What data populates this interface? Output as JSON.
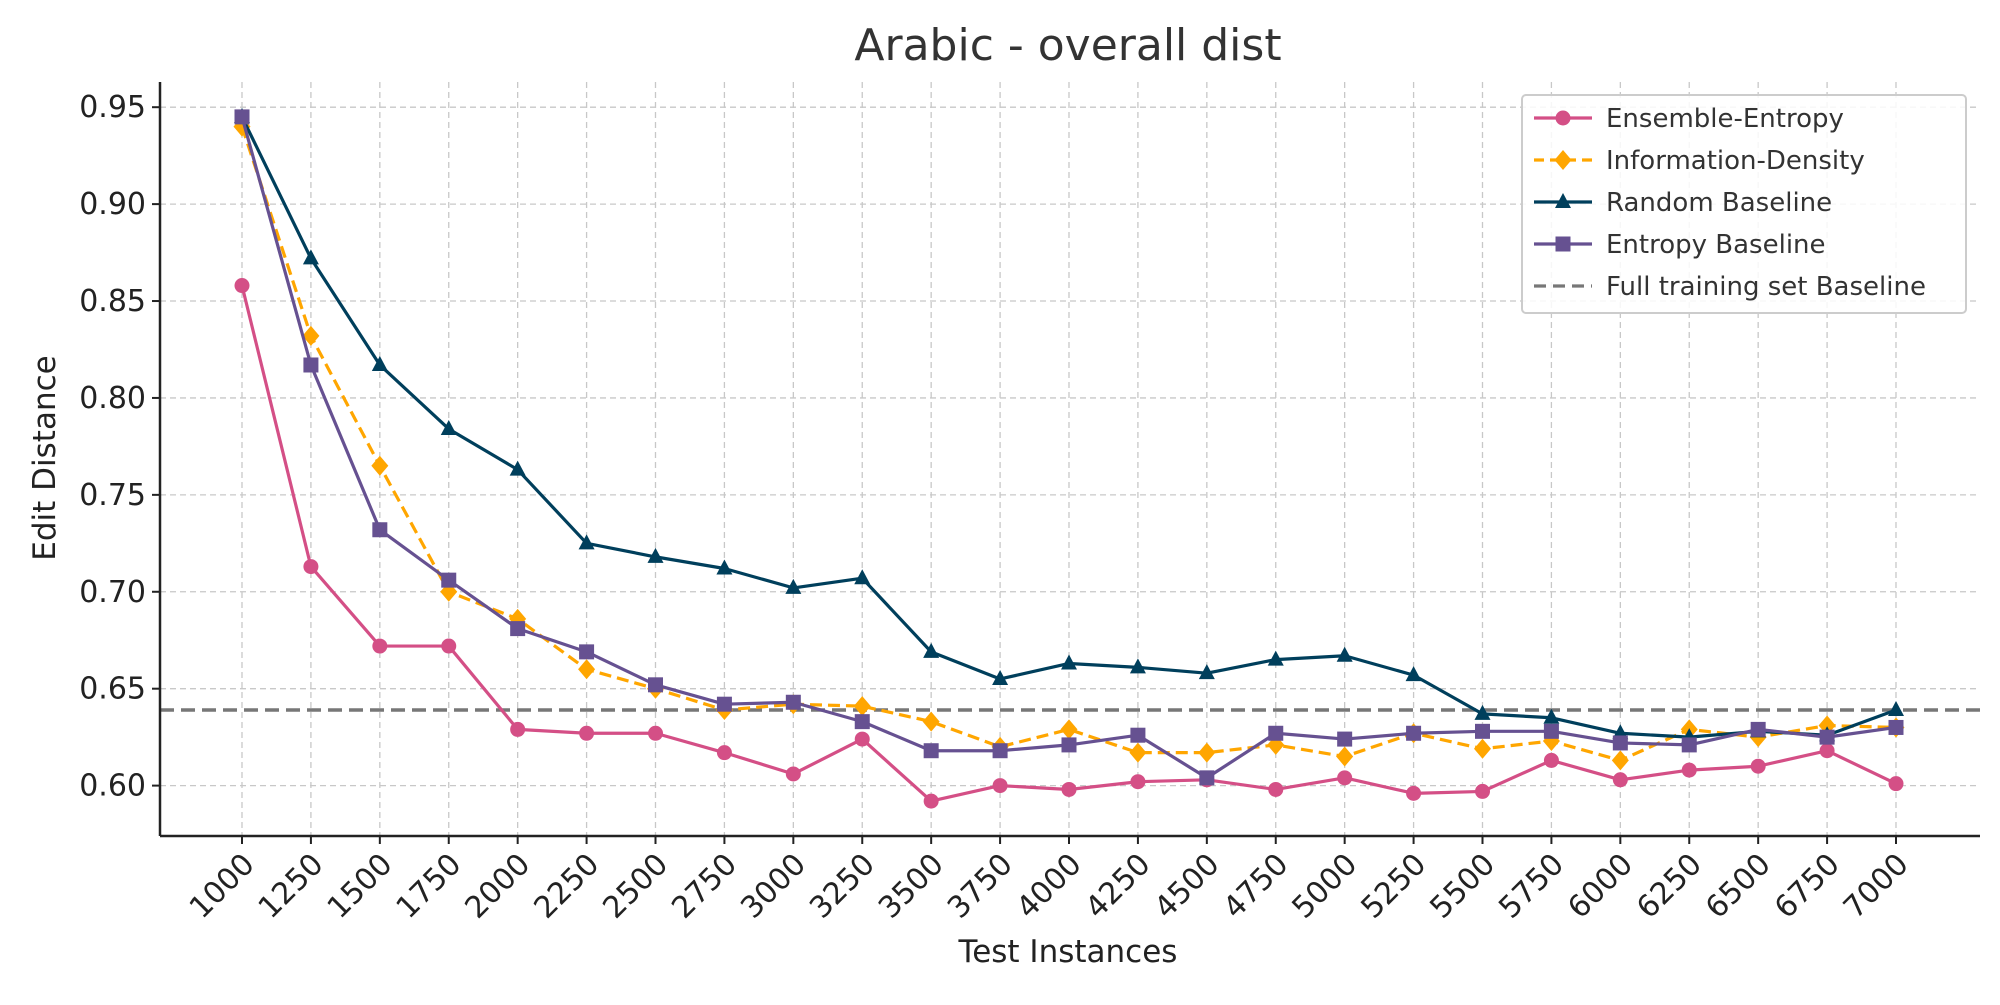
{
  "chart_data": {
    "type": "line",
    "title": "Arabic - overall dist",
    "xlabel": "Test Instances",
    "ylabel": "Edit Distance",
    "x": [
      1000,
      1250,
      1500,
      1750,
      2000,
      2250,
      2500,
      2750,
      3000,
      3250,
      3500,
      3750,
      4000,
      4250,
      4500,
      4750,
      5000,
      5250,
      5500,
      5750,
      6000,
      6250,
      6500,
      6750,
      7000
    ],
    "x_tick_labels": [
      "1000",
      "1250",
      "1500",
      "1750",
      "2000",
      "2250",
      "2500",
      "2750",
      "3000",
      "3250",
      "3500",
      "3750",
      "4000",
      "4250",
      "4500",
      "4750",
      "5000",
      "5250",
      "5500",
      "5750",
      "6000",
      "6250",
      "6500",
      "6750",
      "7000"
    ],
    "y_ticks": [
      0.6,
      0.65,
      0.7,
      0.75,
      0.8,
      0.85,
      0.9,
      0.95
    ],
    "y_tick_labels": [
      "0.60",
      "0.65",
      "0.70",
      "0.75",
      "0.80",
      "0.85",
      "0.90",
      "0.95"
    ],
    "ylim": [
      0.574,
      0.963
    ],
    "grid": true,
    "legend_position": "top-right",
    "series": [
      {
        "name": "Ensemble-Entropy",
        "color": "#d44f86",
        "marker": "circle",
        "dash": "solid",
        "values": [
          0.858,
          0.713,
          0.672,
          0.672,
          0.629,
          0.627,
          0.627,
          0.617,
          0.606,
          0.624,
          0.592,
          0.6,
          0.598,
          0.602,
          0.603,
          0.598,
          0.604,
          0.596,
          0.597,
          0.613,
          0.603,
          0.608,
          0.61,
          0.618,
          0.601
        ]
      },
      {
        "name": "Information-Density",
        "color": "#ffa600",
        "marker": "diamond",
        "dash": "dashed",
        "values": [
          0.94,
          0.832,
          0.765,
          0.7,
          0.686,
          0.66,
          0.65,
          0.639,
          0.642,
          0.641,
          0.633,
          0.62,
          0.629,
          0.617,
          0.617,
          0.621,
          0.615,
          0.627,
          0.619,
          0.623,
          0.613,
          0.629,
          0.625,
          0.631,
          0.63
        ]
      },
      {
        "name": "Random Baseline",
        "color": "#003f5c",
        "marker": "triangle",
        "dash": "solid",
        "values": [
          0.945,
          0.872,
          0.817,
          0.784,
          0.763,
          0.725,
          0.718,
          0.712,
          0.702,
          0.707,
          0.669,
          0.655,
          0.663,
          0.661,
          0.658,
          0.665,
          0.667,
          0.657,
          0.637,
          0.635,
          0.627,
          0.625,
          0.628,
          0.626,
          0.639
        ]
      },
      {
        "name": "Entropy Baseline",
        "color": "#665191",
        "marker": "square",
        "dash": "solid",
        "values": [
          0.945,
          0.817,
          0.732,
          0.706,
          0.681,
          0.669,
          0.652,
          0.642,
          0.643,
          0.633,
          0.618,
          0.618,
          0.621,
          0.626,
          0.604,
          0.627,
          0.624,
          0.627,
          0.628,
          0.628,
          0.622,
          0.621,
          0.629,
          0.625,
          0.63
        ]
      }
    ],
    "reference_line": {
      "name": "Full training set Baseline",
      "value": 0.639,
      "color": "#777777",
      "dash": "dashed"
    }
  }
}
